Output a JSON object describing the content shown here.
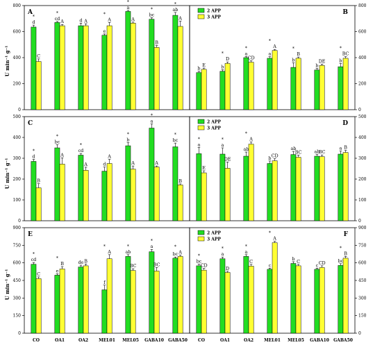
{
  "colors": {
    "series_2app": "#22dd22",
    "series_3app": "#ffff33"
  },
  "ylabel": "U min⁻¹ g⁻¹",
  "chart_data": [
    {
      "type": "bar",
      "panel": "A",
      "ylim": [
        0,
        800
      ],
      "ticks": [
        0,
        200,
        400,
        600,
        800
      ],
      "axis_side": "left",
      "legend": null,
      "categories": [
        "CO",
        "OA1",
        "OA2",
        "MEL01",
        "MEL05",
        "GABA10",
        "GABA50"
      ],
      "series": [
        {
          "name": "2 APP",
          "values": [
            635,
            670,
            645,
            572,
            755,
            695,
            725
          ],
          "errors": [
            15,
            8,
            20,
            10,
            8,
            12,
            22
          ],
          "letters": [
            "d",
            "cd",
            "d",
            "e",
            "a",
            "bc",
            "ab"
          ]
        },
        {
          "name": "3 APP",
          "values": [
            370,
            645,
            645,
            645,
            665,
            478,
            640
          ],
          "errors": [
            20,
            10,
            15,
            25,
            8,
            15,
            40
          ],
          "letters": [
            "C",
            "A",
            "A",
            "A",
            "A",
            "B",
            "A"
          ]
        }
      ],
      "stars": [
        true,
        true,
        false,
        true,
        true,
        true,
        true
      ]
    },
    {
      "type": "bar",
      "panel": "B",
      "ylim": [
        0,
        800
      ],
      "ticks": [
        0,
        200,
        400,
        600,
        800
      ],
      "axis_side": "right",
      "legend": "top-left",
      "categories": [
        "CO",
        "OA1",
        "OA2",
        "MEL01",
        "MEL05",
        "GABA10",
        "GABA50"
      ],
      "series": [
        {
          "name": "2 APP",
          "values": [
            285,
            295,
            400,
            395,
            325,
            305,
            330
          ],
          "errors": [
            10,
            12,
            8,
            12,
            35,
            12,
            25
          ],
          "letters": [
            "b",
            "b",
            "a",
            "a",
            "b",
            "b",
            "b"
          ]
        },
        {
          "name": "3 APP",
          "values": [
            310,
            355,
            365,
            455,
            395,
            340,
            395
          ],
          "errors": [
            10,
            12,
            10,
            8,
            10,
            10,
            12
          ],
          "letters": [
            "E",
            "D",
            "CD",
            "A",
            "B",
            "DE",
            "BC"
          ]
        }
      ],
      "stars": [
        false,
        true,
        true,
        true,
        true,
        false,
        true
      ]
    },
    {
      "type": "bar",
      "panel": "C",
      "ylim": [
        0,
        500
      ],
      "ticks": [
        0,
        100,
        200,
        300,
        400,
        500
      ],
      "axis_side": "left",
      "legend": null,
      "categories": [
        "CO",
        "OA1",
        "OA2",
        "MEL01",
        "MEL05",
        "GABA10",
        "GABA50"
      ],
      "series": [
        {
          "name": "2 APP",
          "values": [
            285,
            350,
            315,
            238,
            360,
            445,
            355
          ],
          "errors": [
            10,
            15,
            8,
            20,
            15,
            20,
            18
          ],
          "letters": [
            "d",
            "bc",
            "cd",
            "d",
            "b",
            "a",
            "bc"
          ]
        },
        {
          "name": "3 APP",
          "values": [
            158,
            272,
            242,
            275,
            248,
            258,
            172
          ],
          "errors": [
            20,
            30,
            15,
            20,
            15,
            5,
            5
          ],
          "letters": [
            "B",
            "A",
            "A",
            "A",
            "A",
            "A",
            "B"
          ]
        }
      ],
      "stars": [
        true,
        true,
        true,
        false,
        true,
        true,
        true
      ]
    },
    {
      "type": "bar",
      "panel": "D",
      "ylim": [
        0,
        500
      ],
      "ticks": [
        0,
        100,
        200,
        300,
        400,
        500
      ],
      "axis_side": "right",
      "legend": "top-left",
      "categories": [
        "CO",
        "OA1",
        "OA2",
        "MEL01",
        "MEL05",
        "GABA10",
        "GABA50"
      ],
      "series": [
        {
          "name": "2 APP",
          "values": [
            322,
            320,
            310,
            275,
            318,
            310,
            320
          ],
          "errors": [
            30,
            30,
            20,
            12,
            15,
            8,
            15
          ],
          "letters": [
            "a",
            "a",
            "ab",
            "b",
            "ab",
            "ab",
            "a"
          ]
        },
        {
          "name": "3 APP",
          "values": [
            230,
            252,
            368,
            288,
            305,
            308,
            328
          ],
          "errors": [
            10,
            30,
            10,
            10,
            10,
            8,
            10
          ],
          "letters": [
            "E",
            "DE",
            "A",
            "CD",
            "BC",
            "BC",
            "B"
          ]
        }
      ],
      "stars": [
        true,
        true,
        true,
        false,
        false,
        false,
        false
      ]
    },
    {
      "type": "bar",
      "panel": "E",
      "ylim": [
        0,
        900
      ],
      "ticks": [
        0,
        150,
        300,
        450,
        600,
        750,
        900
      ],
      "axis_side": "left",
      "legend": null,
      "categories": [
        "CO",
        "OA1",
        "OA2",
        "MEL01",
        "MEL05",
        "GABA10",
        "GABA50"
      ],
      "series": [
        {
          "name": "2 APP",
          "values": [
            588,
            495,
            565,
            370,
            655,
            695,
            640
          ],
          "errors": [
            15,
            12,
            15,
            40,
            15,
            20,
            10
          ],
          "letters": [
            "cd",
            "e",
            "de",
            "f",
            "ab",
            "a",
            "bc"
          ]
        },
        {
          "name": "3 APP",
          "values": [
            465,
            548,
            575,
            635,
            535,
            530,
            655
          ],
          "errors": [
            15,
            20,
            15,
            35,
            15,
            30,
            10
          ],
          "letters": [
            "C",
            "B",
            "B",
            "A",
            "BC",
            "BC",
            "A"
          ]
        }
      ],
      "stars": [
        true,
        true,
        false,
        true,
        true,
        true,
        true
      ]
    },
    {
      "type": "bar",
      "panel": "F",
      "ylim": [
        0,
        900
      ],
      "ticks": [
        0,
        150,
        300,
        450,
        600,
        750,
        900
      ],
      "axis_side": "right",
      "legend": "top-left",
      "categories": [
        "CO",
        "OA1",
        "OA2",
        "MEL01",
        "MEL05",
        "GABA10",
        "GABA50"
      ],
      "series": [
        {
          "name": "2 APP",
          "values": [
            575,
            635,
            655,
            545,
            595,
            545,
            578
          ],
          "errors": [
            15,
            15,
            15,
            10,
            15,
            10,
            15
          ],
          "letters": [
            "bc",
            "a",
            "a",
            "c",
            "b",
            "c",
            "bc"
          ]
        },
        {
          "name": "3 APP",
          "values": [
            538,
            518,
            572,
            772,
            575,
            560,
            640
          ],
          "errors": [
            15,
            10,
            15,
            12,
            12,
            15,
            15
          ],
          "letters": [
            "CD",
            "D",
            "C",
            "A",
            "C",
            "CD",
            "B"
          ]
        }
      ],
      "stars": [
        true,
        true,
        true,
        true,
        false,
        false,
        true
      ]
    }
  ]
}
